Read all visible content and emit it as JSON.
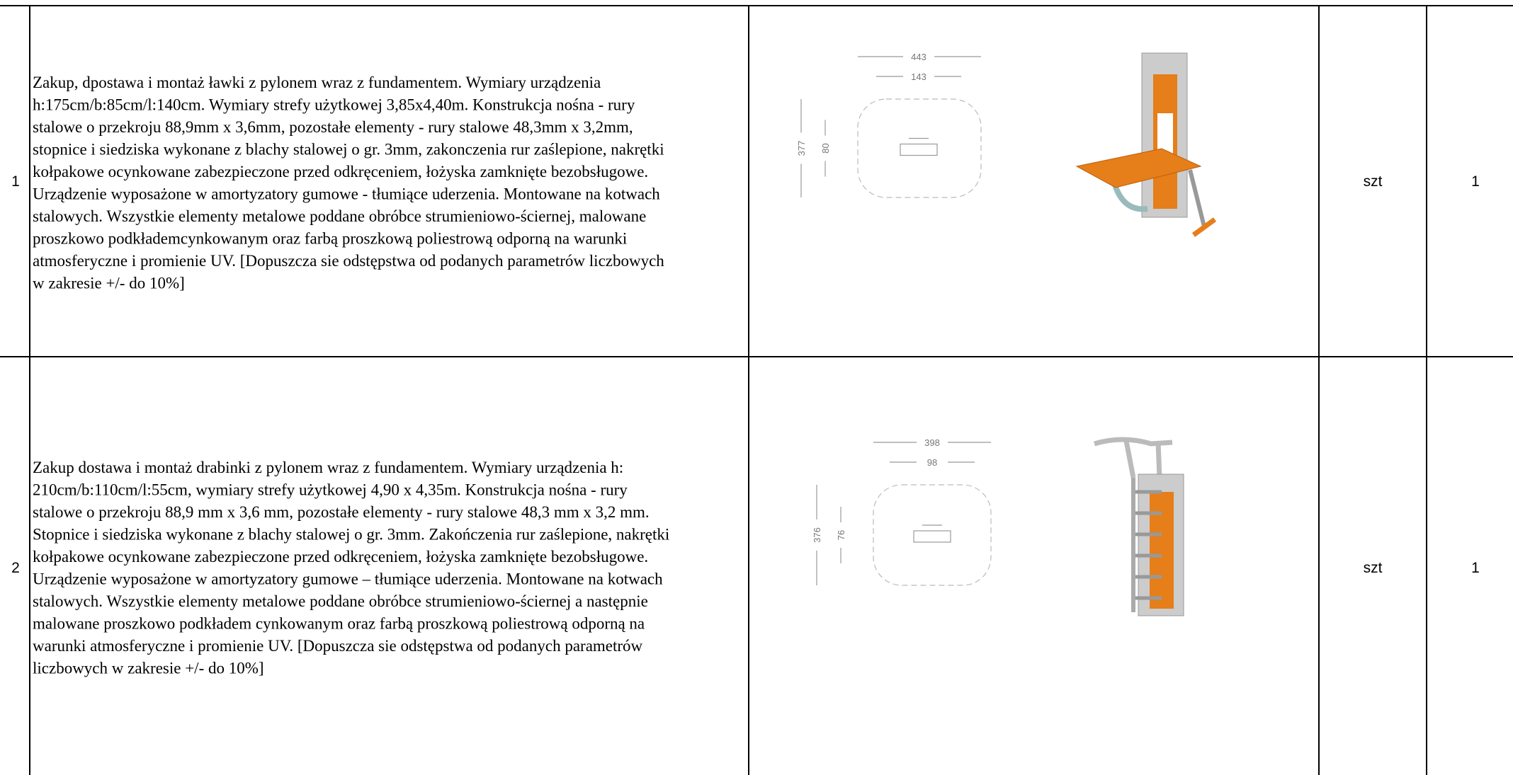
{
  "table": {
    "rows": [
      {
        "number": "1",
        "description": [
          "Zakup, dpostawa i montaż ławki z pylonem wraz z fundamentem. Wymiary urządzenia",
          "h:175cm/b:85cm/l:140cm. Wymiary strefy użytkowej 3,85x4,40m. Konstrukcja nośna - rury",
          "stalowe o przekroju 88,9mm x 3,6mm, pozostałe elementy - rury stalowe 48,3mm x 3,2mm,",
          "stopnice i siedziska wykonane z blachy stalowej o gr. 3mm, zakonczenia rur zaślepione, nakrętki",
          "kołpakowe ocynkowane zabezpieczone przed odkręceniem, łożyska zamknięte bezobsługowe.",
          "Urządzenie wyposażone w amortyzatory gumowe - tłumiące uderzenia. Montowane na kotwach",
          "stalowych. Wszystkie elementy metalowe poddane obróbce strumieniowo-ściernej, malowane",
          "proszkowo podkłademcynkowanym oraz farbą proszkową poliestrową odporną na warunki",
          "atmosferyczne i promienie UV. [Dopuszcza sie odstępstwa od podanych parametrów liczbowych",
          "w zakresie +/- do 10%]"
        ],
        "plan": {
          "width": "443",
          "inner_width": "143",
          "depth": "377",
          "inner_depth": "80"
        },
        "unit": "szt",
        "quantity": "1"
      },
      {
        "number": "2",
        "description": [
          "Zakup dostawa i montaż drabinki z pylonem wraz z fundamentem. Wymiary urządzenia h:",
          "210cm/b:110cm/l:55cm, wymiary strefy użytkowej 4,90 x 4,35m. Konstrukcja nośna -  rury",
          "stalowe o przekroju 88,9 mm x 3,6 mm, pozostałe elementy -  rury stalowe  48,3 mm x 3,2 mm.",
          "Stopnice i siedziska wykonane z blachy stalowej o gr. 3mm. Zakończenia rur zaślepione, nakrętki",
          "kołpakowe ocynkowane zabezpieczone przed odkręceniem, łożyska zamknięte bezobsługowe.",
          "Urządzenie wyposażone w amortyzatory gumowe – tłumiące uderzenia. Montowane na kotwach",
          "stalowych. Wszystkie elementy metalowe poddane obróbce strumieniowo-ściernej a następnie",
          "malowane proszkowo podkładem cynkowanym oraz farbą proszkową poliestrową odporną na",
          "warunki atmosferyczne i promienie UV. [Dopuszcza sie odstępstwa od podanych parametrów",
          "liczbowych w zakresie +/- do 10%]"
        ],
        "plan": {
          "width": "398",
          "inner_width": "98",
          "depth": "376",
          "inner_depth": "76"
        },
        "unit": "szt",
        "quantity": "1"
      }
    ]
  }
}
